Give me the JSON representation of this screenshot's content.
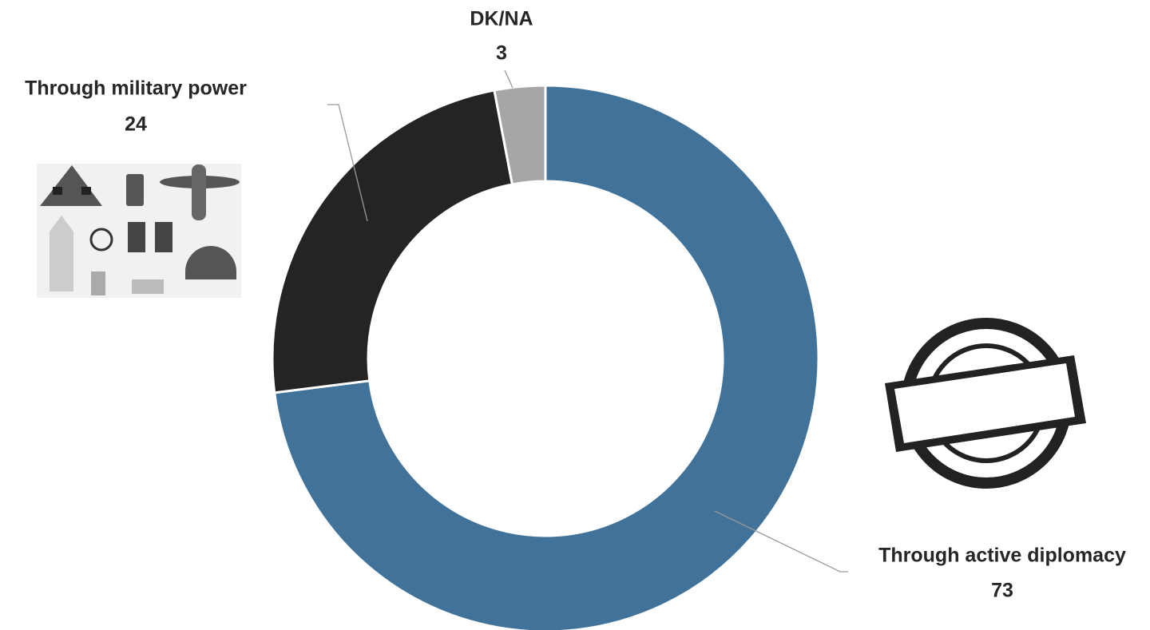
{
  "chart_data": {
    "type": "donut",
    "categories": [
      "Through active diplomacy",
      "Through military power",
      "DK/NA"
    ],
    "values": [
      73,
      24,
      3
    ],
    "colors": [
      "#41739a",
      "#242424",
      "#a6a6a6"
    ]
  }
}
